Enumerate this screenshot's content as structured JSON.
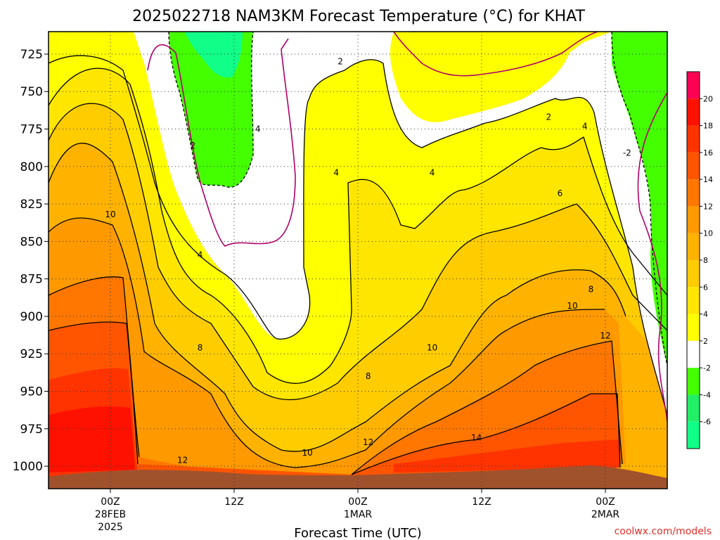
{
  "chart_data": {
    "type": "heatmap",
    "title": "2025022718 NAM3KM Forecast Temperature (°C) for KHAT",
    "xlabel": "Forecast Time (UTC)",
    "ylabel": "",
    "credit": "coolwx.com/models",
    "y_ticks": [
      725,
      750,
      775,
      800,
      825,
      850,
      875,
      900,
      925,
      950,
      975,
      1000
    ],
    "y_range_hpa": [
      710,
      1015
    ],
    "x_ticks": [
      {
        "lines": [
          "00Z",
          "28FEB",
          "2025"
        ]
      },
      {
        "lines": [
          "12Z"
        ]
      },
      {
        "lines": [
          "00Z",
          "1MAR"
        ]
      },
      {
        "lines": [
          "12Z"
        ]
      },
      {
        "lines": [
          "00Z",
          "2MAR"
        ]
      }
    ],
    "colorbar": {
      "ticks": [
        "20",
        "18",
        "16",
        "14",
        "12",
        "10",
        "8",
        "6",
        "4",
        "2",
        "-2",
        "-4",
        "-6"
      ],
      "colors": [
        "#ff0055",
        "#ff1100",
        "#ff3300",
        "#ff5500",
        "#ff7700",
        "#ff9900",
        "#ffb300",
        "#ffcc00",
        "#ffe600",
        "#ffff00",
        "#ffffff",
        "#44ff00",
        "#22ee66",
        "#11ff88"
      ]
    },
    "contour_labels": [
      {
        "text": "2",
        "hours": 8.0,
        "hpa": 786
      },
      {
        "text": "4",
        "hours": 8.7,
        "hpa": 859
      },
      {
        "text": "8",
        "hours": 8.7,
        "hpa": 921
      },
      {
        "text": "10",
        "hours": 0.0,
        "hpa": 832
      },
      {
        "text": "12",
        "hours": 7.0,
        "hpa": 996
      },
      {
        "text": "4",
        "hours": 14.3,
        "hpa": 775
      },
      {
        "text": "2",
        "hours": 22.3,
        "hpa": 730
      },
      {
        "text": "4",
        "hours": 21.9,
        "hpa": 804
      },
      {
        "text": "8",
        "hours": 25.0,
        "hpa": 940
      },
      {
        "text": "10",
        "hours": 19.1,
        "hpa": 991
      },
      {
        "text": "12",
        "hours": 25.0,
        "hpa": 984
      },
      {
        "text": "4",
        "hours": 31.2,
        "hpa": 804
      },
      {
        "text": "10",
        "hours": 31.2,
        "hpa": 921
      },
      {
        "text": "14",
        "hours": 35.5,
        "hpa": 981
      },
      {
        "text": "2",
        "hours": 42.5,
        "hpa": 767
      },
      {
        "text": "4",
        "hours": 46.0,
        "hpa": 773
      },
      {
        "text": "6",
        "hours": 43.6,
        "hpa": 818
      },
      {
        "text": "8",
        "hours": 46.6,
        "hpa": 882
      },
      {
        "text": "10",
        "hours": 44.8,
        "hpa": 893
      },
      {
        "text": "12",
        "hours": 48.0,
        "hpa": 913
      },
      {
        "text": "-2",
        "hours": 50.1,
        "hpa": 791
      }
    ]
  }
}
